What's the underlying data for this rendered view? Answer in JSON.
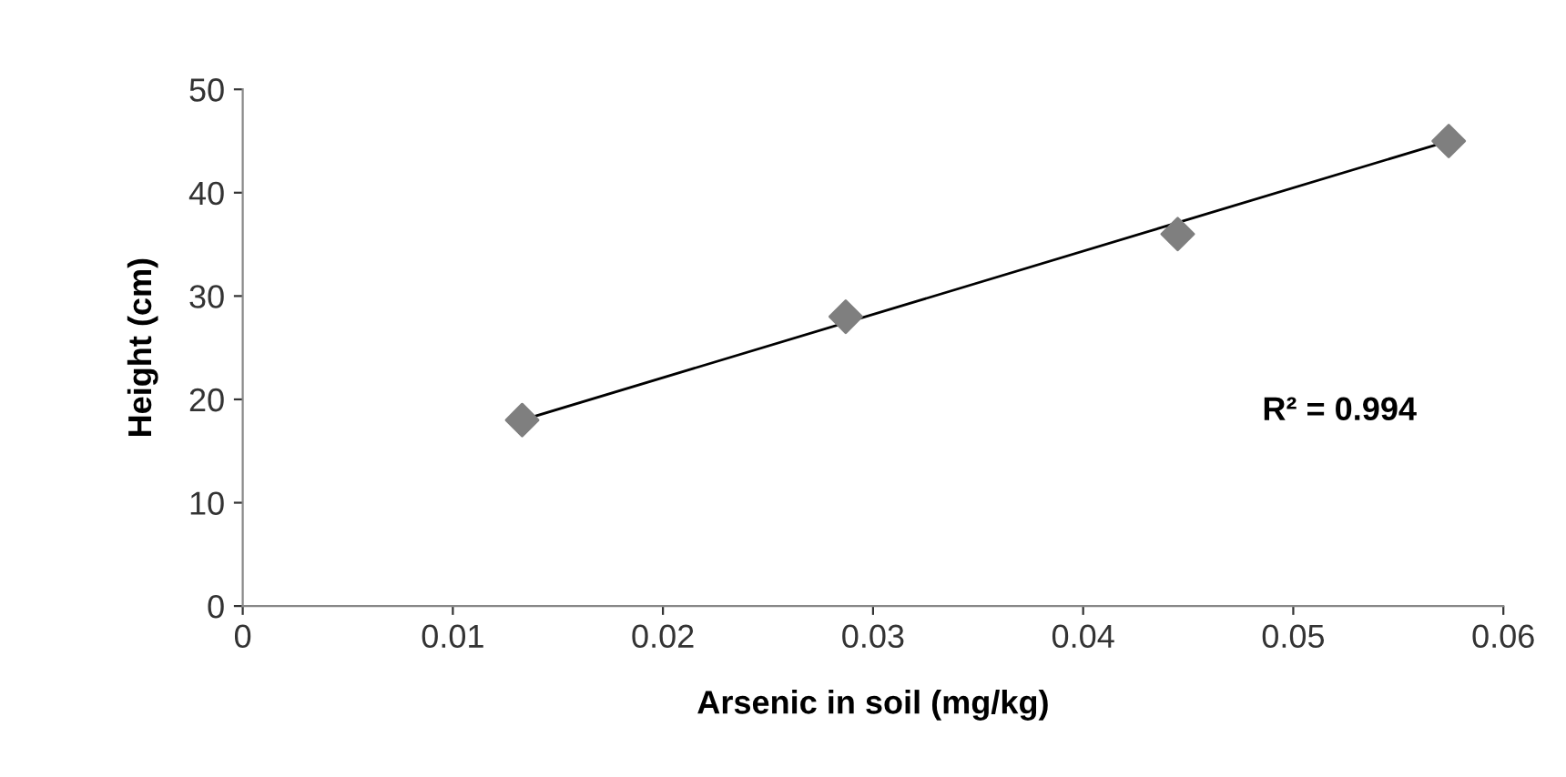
{
  "chart_data": {
    "type": "scatter",
    "xlabel": "Arsenic in soil (mg/kg)",
    "ylabel": "Height (cm)",
    "series": [
      {
        "color": "#7f7f7f",
        "marker": "diamond",
        "x": [
          0.0133,
          0.0287,
          0.0445,
          0.0574
        ],
        "values": [
          18,
          28,
          36,
          45
        ]
      },
      {
        "type": "line",
        "color": "#000000",
        "marker": "none",
        "line_style": "solid",
        "x": [
          0.0133,
          0.0574
        ],
        "values": [
          18,
          45
        ]
      }
    ],
    "annotations": [
      "R² = 0.994"
    ],
    "xlim": [
      0,
      0.06
    ],
    "xticks": [
      0,
      0.01,
      0.02,
      0.03,
      0.04,
      0.05,
      0.06
    ],
    "ylim": [
      0,
      50
    ],
    "yticks": [
      0,
      10,
      20,
      30,
      40,
      50
    ],
    "grid": false,
    "legend": false
  }
}
